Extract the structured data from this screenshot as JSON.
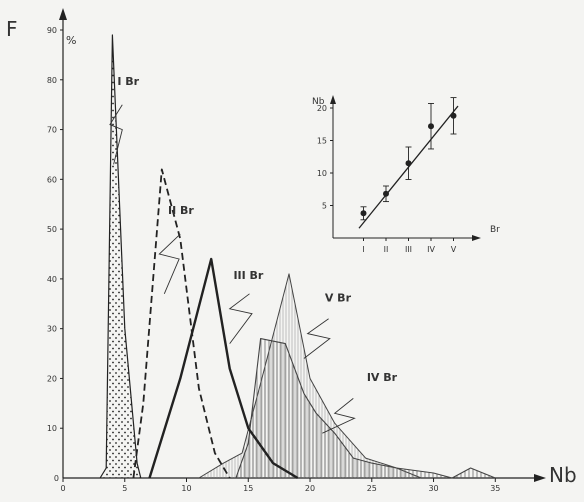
{
  "chart_data": [
    {
      "type": "line",
      "ylabel": "F",
      "yunit": "%",
      "xlabel": "Nb",
      "xlim": [
        0,
        37
      ],
      "ylim": [
        0,
        90
      ],
      "xticks": [
        0,
        5,
        10,
        15,
        20,
        25,
        30,
        35
      ],
      "yticks": [
        10,
        20,
        30,
        40,
        50,
        60,
        70,
        80,
        90
      ],
      "series": [
        {
          "name": "I Br",
          "style": "dotted-fill",
          "points": [
            [
              3,
              0
            ],
            [
              3.5,
              2
            ],
            [
              4,
              89
            ],
            [
              5,
              30
            ],
            [
              6,
              3
            ],
            [
              6.3,
              0
            ]
          ]
        },
        {
          "name": "II Br",
          "style": "dashed",
          "points": [
            [
              5.7,
              0
            ],
            [
              6.5,
              15
            ],
            [
              8,
              62
            ],
            [
              9.5,
              48
            ],
            [
              11,
              18
            ],
            [
              12.3,
              5
            ],
            [
              13.5,
              0
            ]
          ]
        },
        {
          "name": "III Br",
          "style": "bold",
          "points": [
            [
              7,
              0
            ],
            [
              9.5,
              20
            ],
            [
              12,
              44
            ],
            [
              13.5,
              22
            ],
            [
              15,
              10
            ],
            [
              17,
              3
            ],
            [
              19,
              0
            ]
          ]
        },
        {
          "name": "V Br",
          "style": "hatched",
          "points": [
            [
              11,
              0
            ],
            [
              13,
              3
            ],
            [
              14.5,
              5
            ],
            [
              16,
              19
            ],
            [
              18.3,
              41
            ],
            [
              20,
              20
            ],
            [
              22,
              11
            ],
            [
              24.5,
              4
            ],
            [
              27,
              2
            ],
            [
              29,
              0
            ]
          ]
        },
        {
          "name": "IV Br",
          "style": "vertical-hatched",
          "points": [
            [
              14,
              0
            ],
            [
              15,
              7
            ],
            [
              16,
              28
            ],
            [
              18,
              27
            ],
            [
              19.5,
              17
            ],
            [
              20.5,
              13
            ],
            [
              22,
              9
            ],
            [
              23.5,
              4
            ],
            [
              25,
              3
            ],
            [
              27,
              2
            ],
            [
              30,
              1
            ],
            [
              31.5,
              0
            ],
            [
              33,
              2
            ],
            [
              34,
              1
            ],
            [
              35,
              0
            ]
          ]
        }
      ]
    },
    {
      "type": "scatter",
      "ylabel": "Nb",
      "xlabel": "Br",
      "categories": [
        "I",
        "II",
        "III",
        "IV",
        "V"
      ],
      "ylim": [
        0,
        22
      ],
      "yticks": [
        5,
        10,
        15,
        20
      ],
      "values": [
        3.8,
        6.8,
        11.5,
        17.2,
        18.8
      ],
      "errors": [
        1.0,
        1.2,
        2.5,
        3.5,
        2.8
      ],
      "fit_line": [
        [
          0.8,
          1.5
        ],
        [
          5.2,
          20.3
        ]
      ]
    }
  ]
}
